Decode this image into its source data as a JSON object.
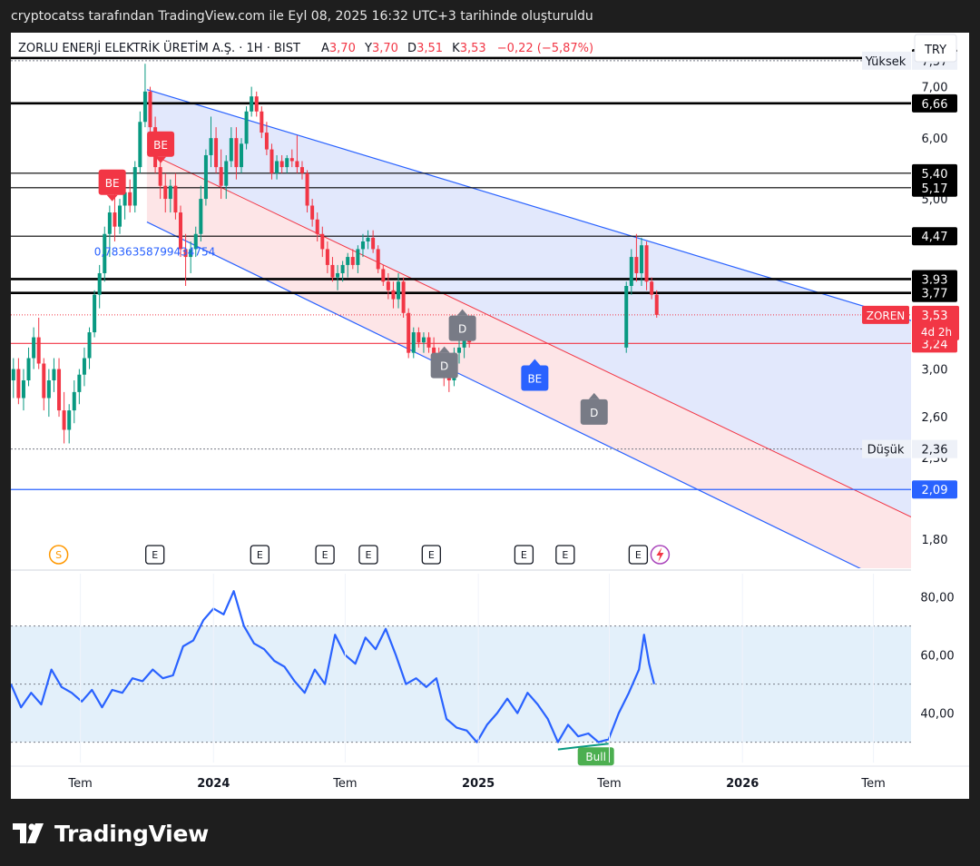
{
  "header": {
    "watermark": "cryptocatss tarafından TradingView.com ile Eyl 08, 2025 16:32 UTC+3 tarihinde oluşturuldu"
  },
  "legend": {
    "symbol": "ZORLU ENERJİ ELEKTRİK ÜRETİM A.Ş. · 1H · BIST",
    "open_label": "A",
    "open_value": "3,70",
    "high_label": "Y",
    "high_value": "3,70",
    "low_label": "D",
    "low_value": "3,51",
    "close_label": "K",
    "close_value": "3,53",
    "change": "−0,22 (−5,87%)"
  },
  "currency": "TRY",
  "brand": "TradingView",
  "colors": {
    "up": "#089981",
    "down": "#f23645",
    "blue": "#2962ff",
    "rsi": "#2962ff",
    "channel_fill_upper": "#dfe6fc",
    "channel_fill_lower": "#fde2e4",
    "rsi_band": "#e3f0fa"
  },
  "chart_data": {
    "type": "candlestick",
    "price_axis": {
      "ticks": [
        "7,00",
        "6,00",
        "5,00",
        "3,00",
        "2,60",
        "2,30",
        "1,80"
      ],
      "scale": "log",
      "range": [
        1.65,
        8.1
      ]
    },
    "time_axis": {
      "ticks": [
        {
          "label": "Tem",
          "date": "2023-07-01",
          "bold": false
        },
        {
          "label": "2024",
          "date": "2024-01-01",
          "bold": true
        },
        {
          "label": "Tem",
          "date": "2024-07-01",
          "bold": false
        },
        {
          "label": "2025",
          "date": "2025-01-01",
          "bold": true
        },
        {
          "label": "Tem",
          "date": "2025-07-01",
          "bold": false
        },
        {
          "label": "2026",
          "date": "2026-01-01",
          "bold": true
        },
        {
          "label": "Tem",
          "date": "2026-07-01",
          "bold": false
        }
      ]
    },
    "ohlc_weekly": [
      [
        "2023-03-27",
        2.9,
        3.1,
        2.75,
        3.0
      ],
      [
        "2023-04-03",
        3.0,
        3.1,
        2.7,
        2.75
      ],
      [
        "2023-04-10",
        2.75,
        3.0,
        2.65,
        2.9
      ],
      [
        "2023-04-17",
        2.9,
        3.2,
        2.85,
        3.1
      ],
      [
        "2023-04-24",
        3.1,
        3.4,
        3.0,
        3.3
      ],
      [
        "2023-05-01",
        3.3,
        3.5,
        3.0,
        3.05
      ],
      [
        "2023-05-08",
        3.05,
        3.1,
        2.65,
        2.75
      ],
      [
        "2023-05-15",
        2.75,
        3.0,
        2.6,
        2.9
      ],
      [
        "2023-05-22",
        2.9,
        3.1,
        2.8,
        3.0
      ],
      [
        "2023-05-29",
        3.0,
        3.1,
        2.6,
        2.65
      ],
      [
        "2023-06-05",
        2.65,
        2.8,
        2.4,
        2.5
      ],
      [
        "2023-06-12",
        2.5,
        2.7,
        2.4,
        2.65
      ],
      [
        "2023-06-19",
        2.65,
        2.9,
        2.55,
        2.8
      ],
      [
        "2023-06-26",
        2.8,
        3.0,
        2.7,
        2.95
      ],
      [
        "2023-07-03",
        2.95,
        3.2,
        2.85,
        3.1
      ],
      [
        "2023-07-10",
        3.1,
        3.4,
        3.0,
        3.35
      ],
      [
        "2023-07-17",
        3.35,
        3.8,
        3.3,
        3.75
      ],
      [
        "2023-07-24",
        3.75,
        4.1,
        3.6,
        4.0
      ],
      [
        "2023-07-31",
        4.0,
        4.6,
        3.9,
        4.5
      ],
      [
        "2023-08-07",
        4.5,
        4.9,
        4.2,
        4.8
      ],
      [
        "2023-08-14",
        4.8,
        5.1,
        4.4,
        4.6
      ],
      [
        "2023-08-21",
        4.6,
        5.0,
        4.5,
        4.9
      ],
      [
        "2023-08-28",
        4.9,
        5.2,
        4.7,
        5.1
      ],
      [
        "2023-09-04",
        5.1,
        5.3,
        4.8,
        4.9
      ],
      [
        "2023-09-11",
        4.9,
        5.6,
        4.8,
        5.5
      ],
      [
        "2023-09-18",
        5.5,
        6.5,
        5.4,
        6.3
      ],
      [
        "2023-09-25",
        6.3,
        7.5,
        6.2,
        6.9
      ],
      [
        "2023-10-02",
        6.9,
        7.0,
        6.1,
        6.2
      ],
      [
        "2023-10-09",
        6.2,
        6.4,
        5.4,
        5.5
      ],
      [
        "2023-10-16",
        5.5,
        5.6,
        5.0,
        5.2
      ],
      [
        "2023-10-23",
        5.2,
        5.4,
        4.8,
        5.0
      ],
      [
        "2023-10-30",
        5.0,
        5.3,
        4.8,
        5.2
      ],
      [
        "2023-11-06",
        5.2,
        5.4,
        4.7,
        4.8
      ],
      [
        "2023-11-13",
        4.8,
        4.9,
        4.2,
        4.3
      ],
      [
        "2023-11-20",
        4.3,
        4.5,
        3.85,
        4.2
      ],
      [
        "2023-11-27",
        4.2,
        4.4,
        4.0,
        4.3
      ],
      [
        "2023-12-04",
        4.3,
        4.6,
        4.2,
        4.5
      ],
      [
        "2023-12-11",
        4.5,
        5.2,
        4.4,
        5.0
      ],
      [
        "2023-12-18",
        5.0,
        5.8,
        4.9,
        5.7
      ],
      [
        "2023-12-25",
        5.7,
        6.4,
        5.5,
        6.0
      ],
      [
        "2024-01-01",
        6.0,
        6.2,
        5.4,
        5.5
      ],
      [
        "2024-01-08",
        5.5,
        5.8,
        5.0,
        5.2
      ],
      [
        "2024-01-15",
        5.2,
        5.7,
        5.0,
        5.6
      ],
      [
        "2024-01-22",
        5.6,
        6.2,
        5.5,
        6.0
      ],
      [
        "2024-01-29",
        6.0,
        6.2,
        5.3,
        5.5
      ],
      [
        "2024-02-05",
        5.5,
        6.0,
        5.4,
        5.9
      ],
      [
        "2024-02-12",
        5.9,
        6.6,
        5.8,
        6.5
      ],
      [
        "2024-02-19",
        6.5,
        7.0,
        6.4,
        6.8
      ],
      [
        "2024-02-26",
        6.8,
        6.9,
        6.4,
        6.5
      ],
      [
        "2024-03-04",
        6.5,
        6.6,
        6.0,
        6.1
      ],
      [
        "2024-03-11",
        6.1,
        6.3,
        5.7,
        5.8
      ],
      [
        "2024-03-18",
        5.8,
        5.9,
        5.3,
        5.4
      ],
      [
        "2024-03-25",
        5.4,
        5.7,
        5.3,
        5.6
      ],
      [
        "2024-04-01",
        5.6,
        5.7,
        5.4,
        5.5
      ],
      [
        "2024-04-08",
        5.5,
        5.7,
        5.4,
        5.65
      ],
      [
        "2024-04-15",
        5.65,
        5.8,
        5.5,
        5.6
      ],
      [
        "2024-04-22",
        5.6,
        6.05,
        5.4,
        5.5
      ],
      [
        "2024-04-29",
        5.5,
        5.6,
        5.3,
        5.4
      ],
      [
        "2024-05-06",
        5.4,
        5.45,
        4.8,
        4.9
      ],
      [
        "2024-05-13",
        4.9,
        5.0,
        4.6,
        4.7
      ],
      [
        "2024-05-20",
        4.7,
        4.8,
        4.4,
        4.5
      ],
      [
        "2024-05-27",
        4.5,
        4.6,
        4.2,
        4.3
      ],
      [
        "2024-06-03",
        4.3,
        4.4,
        4.0,
        4.1
      ],
      [
        "2024-06-10",
        4.1,
        4.2,
        3.9,
        3.95
      ],
      [
        "2024-06-17",
        3.95,
        4.1,
        3.8,
        4.0
      ],
      [
        "2024-06-24",
        4.0,
        4.15,
        3.9,
        4.1
      ],
      [
        "2024-07-01",
        4.1,
        4.25,
        3.95,
        4.2
      ],
      [
        "2024-07-08",
        4.2,
        4.3,
        4.05,
        4.1
      ],
      [
        "2024-07-15",
        4.1,
        4.35,
        4.0,
        4.3
      ],
      [
        "2024-07-22",
        4.3,
        4.5,
        4.2,
        4.4
      ],
      [
        "2024-07-29",
        4.4,
        4.55,
        4.3,
        4.45
      ],
      [
        "2024-08-05",
        4.45,
        4.55,
        4.25,
        4.3
      ],
      [
        "2024-08-12",
        4.3,
        4.35,
        4.0,
        4.05
      ],
      [
        "2024-08-19",
        4.05,
        4.1,
        3.85,
        3.9
      ],
      [
        "2024-08-26",
        3.9,
        4.0,
        3.7,
        3.8
      ],
      [
        "2024-09-02",
        3.8,
        3.9,
        3.6,
        3.7
      ],
      [
        "2024-09-09",
        3.7,
        4.0,
        3.6,
        3.9
      ],
      [
        "2024-09-16",
        3.9,
        3.95,
        3.5,
        3.55
      ],
      [
        "2024-09-23",
        3.55,
        3.6,
        3.1,
        3.15
      ],
      [
        "2024-09-30",
        3.15,
        3.4,
        3.1,
        3.35
      ],
      [
        "2024-10-07",
        3.35,
        3.4,
        3.2,
        3.25
      ],
      [
        "2024-10-14",
        3.25,
        3.35,
        3.15,
        3.3
      ],
      [
        "2024-10-21",
        3.3,
        3.35,
        3.15,
        3.2
      ],
      [
        "2024-10-28",
        3.2,
        3.3,
        3.05,
        3.1
      ],
      [
        "2024-11-04",
        3.1,
        3.2,
        2.95,
        3.0
      ],
      [
        "2024-11-11",
        3.0,
        3.1,
        2.85,
        2.95
      ],
      [
        "2024-11-18",
        2.95,
        3.05,
        2.8,
        2.9
      ],
      [
        "2024-11-25",
        2.9,
        3.2,
        2.85,
        3.15
      ],
      [
        "2024-12-02",
        3.15,
        3.3,
        3.05,
        3.2
      ],
      [
        "2024-12-09",
        3.2,
        3.4,
        3.1,
        3.35
      ],
      [
        "2024-12-16",
        3.35,
        3.45,
        3.2,
        3.25
      ]
    ],
    "ohlc_last_bars": [
      [
        "2025-07-21",
        3.2,
        3.9,
        3.15,
        3.85
      ],
      [
        "2025-07-28",
        3.85,
        4.3,
        3.75,
        4.2
      ],
      [
        "2025-08-04",
        4.2,
        4.5,
        3.9,
        4.0
      ],
      [
        "2025-08-11",
        4.0,
        4.45,
        3.85,
        4.35
      ],
      [
        "2025-08-18",
        4.35,
        4.4,
        3.8,
        3.9
      ],
      [
        "2025-08-25",
        3.9,
        3.95,
        3.7,
        3.75
      ],
      [
        "2025-09-01",
        3.75,
        3.8,
        3.5,
        3.53
      ]
    ],
    "horizontal_levels": [
      {
        "price": "7,63",
        "color": "#000000",
        "bold": true
      },
      {
        "price": "6,66",
        "color": "#000000",
        "bold": true
      },
      {
        "price": "5,40",
        "color": "#000000",
        "bold": false
      },
      {
        "price": "5,17",
        "color": "#000000",
        "bold": false
      },
      {
        "price": "4,47",
        "color": "#000000",
        "bold": false
      },
      {
        "price": "3,93",
        "color": "#000000",
        "bold": true
      },
      {
        "price": "3,77",
        "color": "#000000",
        "bold": true
      },
      {
        "price": "3,24",
        "color": "#f23645",
        "bold": false
      },
      {
        "price": "2,09",
        "color": "#2962ff",
        "bold": false
      }
    ],
    "high_marker": {
      "label": "Yüksek",
      "price": "7,57"
    },
    "low_marker": {
      "label": "Düşük",
      "price": "2,36"
    },
    "last_price": {
      "ticker": "ZOREN",
      "price": "3,53",
      "countdown": "4d 2h"
    },
    "channel_annotation": "0,7836358799434754",
    "signals": [
      {
        "text": "BE",
        "date": "2023-08-14",
        "price": 4.95,
        "color": "#f23645",
        "direction": "down"
      },
      {
        "text": "BE",
        "date": "2023-10-20",
        "price": 5.55,
        "color": "#f23645",
        "direction": "down"
      },
      {
        "text": "D",
        "date": "2024-11-15",
        "price": 3.22,
        "color": "#787b86",
        "direction": "up"
      },
      {
        "text": "D",
        "date": "2024-12-10",
        "price": 3.6,
        "color": "#787b86",
        "direction": "up"
      },
      {
        "text": "BE",
        "date": "2025-03-20",
        "price": 3.1,
        "color": "#2962ff",
        "direction": "up"
      },
      {
        "text": "D",
        "date": "2025-06-10",
        "price": 2.8,
        "color": "#787b86",
        "direction": "up"
      }
    ],
    "events": [
      {
        "text": "S",
        "date": "2023-06-01",
        "kind": "split"
      },
      {
        "text": "E",
        "date": "2023-10-12",
        "kind": "earnings"
      },
      {
        "text": "E",
        "date": "2024-03-05",
        "kind": "earnings"
      },
      {
        "text": "E",
        "date": "2024-06-03",
        "kind": "earnings"
      },
      {
        "text": "E",
        "date": "2024-08-02",
        "kind": "earnings"
      },
      {
        "text": "E",
        "date": "2024-10-28",
        "kind": "earnings"
      },
      {
        "text": "E",
        "date": "2025-03-05",
        "kind": "earnings"
      },
      {
        "text": "E",
        "date": "2025-05-01",
        "kind": "earnings"
      },
      {
        "text": "E",
        "date": "2025-08-10",
        "kind": "earnings"
      }
    ],
    "rsi": {
      "axis_ticks": [
        "80,00",
        "60,00",
        "40,00"
      ],
      "range": [
        23,
        88
      ],
      "band": [
        30,
        70
      ],
      "mid": 50,
      "divergence_label": "Bull",
      "points": [
        [
          "2023-03-27",
          50
        ],
        [
          "2023-04-10",
          42
        ],
        [
          "2023-04-24",
          47
        ],
        [
          "2023-05-08",
          43
        ],
        [
          "2023-05-22",
          55
        ],
        [
          "2023-06-05",
          49
        ],
        [
          "2023-06-19",
          47
        ],
        [
          "2023-07-03",
          44
        ],
        [
          "2023-07-17",
          48
        ],
        [
          "2023-07-31",
          42
        ],
        [
          "2023-08-14",
          48
        ],
        [
          "2023-08-28",
          47
        ],
        [
          "2023-09-11",
          52
        ],
        [
          "2023-09-25",
          51
        ],
        [
          "2023-10-09",
          55
        ],
        [
          "2023-10-23",
          52
        ],
        [
          "2023-11-06",
          53
        ],
        [
          "2023-11-20",
          63
        ],
        [
          "2023-12-04",
          65
        ],
        [
          "2023-12-18",
          72
        ],
        [
          "2024-01-01",
          76
        ],
        [
          "2024-01-15",
          74
        ],
        [
          "2024-01-29",
          82
        ],
        [
          "2024-02-12",
          70
        ],
        [
          "2024-02-26",
          64
        ],
        [
          "2024-03-11",
          62
        ],
        [
          "2024-03-25",
          58
        ],
        [
          "2024-04-08",
          56
        ],
        [
          "2024-04-22",
          51
        ],
        [
          "2024-05-06",
          47
        ],
        [
          "2024-05-20",
          55
        ],
        [
          "2024-06-03",
          50
        ],
        [
          "2024-06-17",
          67
        ],
        [
          "2024-07-01",
          60
        ],
        [
          "2024-07-15",
          57
        ],
        [
          "2024-07-29",
          66
        ],
        [
          "2024-08-12",
          62
        ],
        [
          "2024-08-26",
          69
        ],
        [
          "2024-09-09",
          60
        ],
        [
          "2024-09-23",
          50
        ],
        [
          "2024-10-07",
          52
        ],
        [
          "2024-10-21",
          49
        ],
        [
          "2024-11-04",
          52
        ],
        [
          "2024-11-18",
          38
        ],
        [
          "2024-12-02",
          35
        ],
        [
          "2024-12-16",
          34
        ],
        [
          "2024-12-30",
          30
        ],
        [
          "2025-01-13",
          36
        ],
        [
          "2025-01-27",
          40
        ],
        [
          "2025-02-10",
          45
        ],
        [
          "2025-02-24",
          40
        ],
        [
          "2025-03-10",
          47
        ],
        [
          "2025-03-24",
          43
        ],
        [
          "2025-04-07",
          38
        ],
        [
          "2025-04-21",
          30
        ],
        [
          "2025-05-05",
          36
        ],
        [
          "2025-05-19",
          32
        ],
        [
          "2025-06-02",
          33
        ],
        [
          "2025-06-16",
          30
        ],
        [
          "2025-06-30",
          31
        ],
        [
          "2025-07-14",
          40
        ],
        [
          "2025-07-28",
          47
        ],
        [
          "2025-08-11",
          55
        ],
        [
          "2025-08-18",
          67
        ],
        [
          "2025-08-25",
          57
        ],
        [
          "2025-09-01",
          50
        ]
      ]
    }
  }
}
